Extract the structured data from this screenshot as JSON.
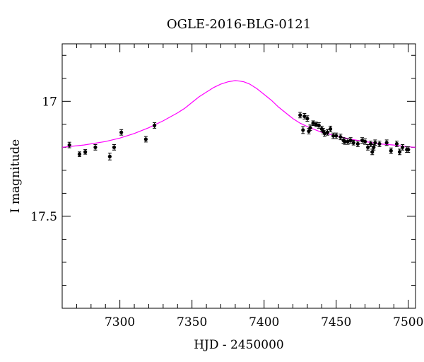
{
  "chart_data": {
    "type": "scatter",
    "title": "OGLE-2016-BLG-0121",
    "xlabel": "HJD - 2450000",
    "ylabel": "I magnitude",
    "xlim": [
      7260,
      7505
    ],
    "ylim": [
      17.9,
      16.75
    ],
    "y_inverted": true,
    "x_ticks": [
      7300,
      7350,
      7400,
      7450,
      7500
    ],
    "x_tick_labels": [
      "7300",
      "7350",
      "7400",
      "7450",
      "7500"
    ],
    "y_ticks": [
      17.0,
      17.5
    ],
    "y_tick_labels": [
      "17",
      "17.5"
    ],
    "grid": false,
    "colors": {
      "model": "#ff00ff",
      "points": "#000000"
    },
    "series": [
      {
        "type": "line",
        "x": [
          7260,
          7275,
          7290,
          7300,
          7310,
          7320,
          7330,
          7340,
          7345,
          7350,
          7355,
          7360,
          7365,
          7370,
          7375,
          7380,
          7383,
          7386,
          7390,
          7395,
          7400,
          7405,
          7410,
          7415,
          7420,
          7425,
          7430,
          7440,
          7450,
          7460,
          7470,
          7480,
          7490,
          7500,
          7505
        ],
        "y": [
          17.2,
          17.19,
          17.175,
          17.16,
          17.14,
          17.115,
          17.085,
          17.05,
          17.03,
          17.005,
          16.98,
          16.96,
          16.94,
          16.925,
          16.915,
          16.91,
          16.912,
          16.915,
          16.925,
          16.945,
          16.97,
          16.995,
          17.025,
          17.05,
          17.075,
          17.095,
          17.11,
          17.135,
          17.15,
          17.165,
          17.175,
          17.185,
          17.19,
          17.198,
          17.2
        ]
      },
      {
        "type": "scatter",
        "x": [
          7265,
          7272,
          7276,
          7283,
          7293,
          7296,
          7301,
          7318,
          7324,
          7425,
          7427,
          7428,
          7430,
          7431,
          7432,
          7434,
          7436,
          7438,
          7440,
          7441,
          7442,
          7444,
          7446,
          7448,
          7450,
          7453,
          7455,
          7456,
          7458,
          7460,
          7462,
          7465,
          7468,
          7470,
          7472,
          7474,
          7475,
          7476,
          7477,
          7480,
          7485,
          7488,
          7492,
          7494,
          7496,
          7499,
          7500
        ],
        "y": [
          17.19,
          17.23,
          17.22,
          17.2,
          17.24,
          17.2,
          17.135,
          17.165,
          17.105,
          17.06,
          17.125,
          17.065,
          17.075,
          17.13,
          17.115,
          17.095,
          17.1,
          17.105,
          17.12,
          17.13,
          17.14,
          17.135,
          17.12,
          17.15,
          17.15,
          17.155,
          17.17,
          17.175,
          17.175,
          17.17,
          17.18,
          17.185,
          17.17,
          17.175,
          17.2,
          17.185,
          17.22,
          17.2,
          17.18,
          17.185,
          17.18,
          17.215,
          17.185,
          17.22,
          17.2,
          17.21,
          17.21
        ],
        "yerr": [
          0.012,
          0.01,
          0.01,
          0.012,
          0.015,
          0.012,
          0.012,
          0.012,
          0.012,
          0.012,
          0.015,
          0.012,
          0.012,
          0.012,
          0.012,
          0.01,
          0.01,
          0.012,
          0.012,
          0.012,
          0.012,
          0.012,
          0.012,
          0.012,
          0.012,
          0.012,
          0.012,
          0.012,
          0.012,
          0.012,
          0.01,
          0.012,
          0.012,
          0.012,
          0.012,
          0.012,
          0.012,
          0.012,
          0.012,
          0.012,
          0.012,
          0.012,
          0.012,
          0.012,
          0.012,
          0.012,
          0.012
        ]
      }
    ]
  }
}
